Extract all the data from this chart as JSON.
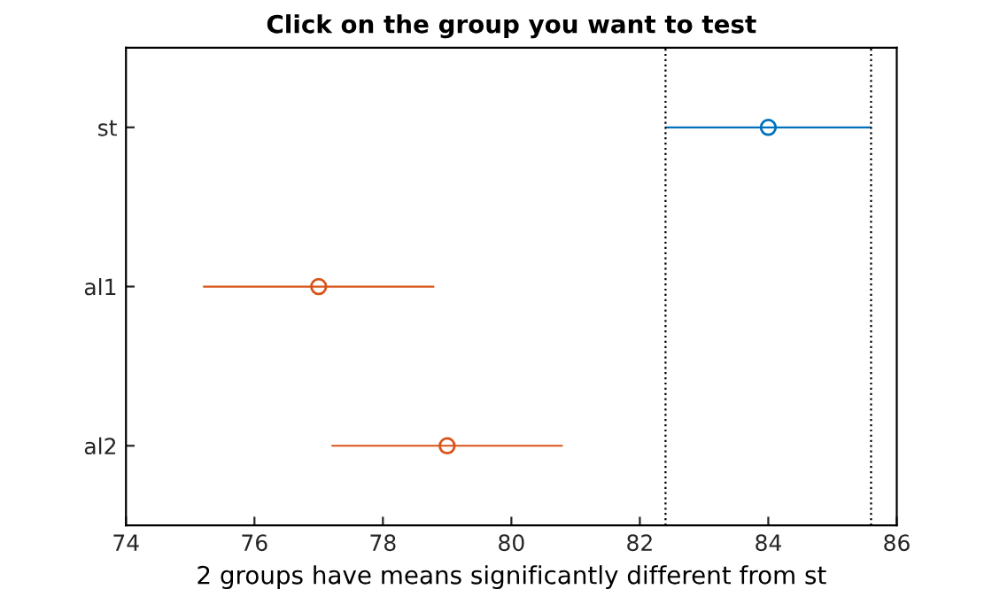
{
  "chart_data": {
    "type": "scatter",
    "orientation": "horizontal",
    "title": "Click on the group you want to test",
    "xlabel": "2 groups have means significantly different from st",
    "categories": [
      "st",
      "al1",
      "al2"
    ],
    "values": [
      84,
      77,
      79
    ],
    "errors": [
      [
        82.4,
        85.6
      ],
      [
        75.2,
        78.8
      ],
      [
        77.2,
        80.8
      ]
    ],
    "colors": [
      "#0072bd",
      "#d95319",
      "#d95319"
    ],
    "marker": "circle",
    "xlim": [
      74,
      86
    ],
    "xticks": [
      74,
      76,
      78,
      80,
      82,
      84,
      86
    ],
    "ref_lines": [
      {
        "axis": "x",
        "value": 82.4,
        "color": "#000000",
        "line_style": "dotted"
      },
      {
        "axis": "x",
        "value": 85.6,
        "color": "#000000",
        "line_style": "dotted"
      }
    ],
    "grid": false
  }
}
